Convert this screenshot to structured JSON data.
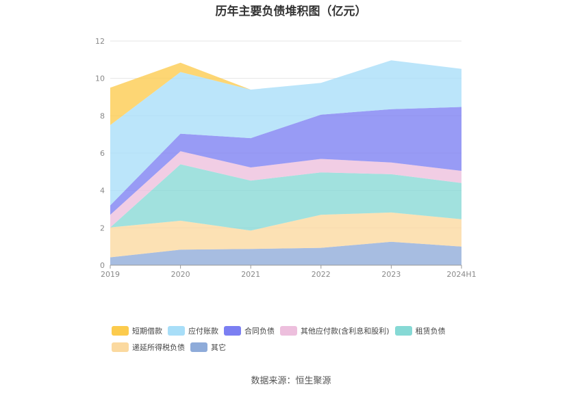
{
  "title": "历年主要负债堆积图（亿元）",
  "source": "数据来源：恒生聚源",
  "chart_data": {
    "type": "area",
    "stacked": true,
    "categories": [
      "2019",
      "2020",
      "2021",
      "2022",
      "2023",
      "2024H1"
    ],
    "ylim": [
      0,
      12
    ],
    "yticks": [
      "0",
      "2",
      "4",
      "6",
      "8",
      "10",
      "12"
    ],
    "grid": true,
    "legend_position": "bottom",
    "series": [
      {
        "name": "其它",
        "color": "#8eabd9",
        "values": [
          0.42,
          0.83,
          0.87,
          0.93,
          1.25,
          1.0
        ]
      },
      {
        "name": "递延所得税负债",
        "color": "#fbd99f",
        "values": [
          1.6,
          1.55,
          0.98,
          1.77,
          1.57,
          1.46
        ]
      },
      {
        "name": "租赁负债",
        "color": "#86d9d5",
        "values": [
          0.0,
          3.02,
          2.68,
          2.27,
          2.05,
          1.94
        ]
      },
      {
        "name": "其他应付款(含利息和股利)",
        "color": "#edbfdd",
        "values": [
          0.68,
          0.7,
          0.7,
          0.72,
          0.63,
          0.65
        ]
      },
      {
        "name": "合同负债",
        "color": "#7b7ff2",
        "values": [
          0.5,
          0.94,
          1.57,
          2.37,
          2.85,
          3.42
        ]
      },
      {
        "name": "应付账款",
        "color": "#a8def8",
        "values": [
          4.3,
          3.3,
          2.6,
          1.7,
          2.62,
          2.04
        ]
      },
      {
        "name": "短期借款",
        "color": "#fccb4d",
        "values": [
          2.0,
          0.5,
          0.0,
          0.0,
          0.0,
          0.0
        ]
      }
    ]
  },
  "legend": {
    "row1": [
      "短期借款",
      "应付账款",
      "合同负债",
      "其他应付款(含利息和股利)",
      "租赁负债"
    ],
    "row2": [
      "递延所得税负债",
      "其它"
    ]
  }
}
